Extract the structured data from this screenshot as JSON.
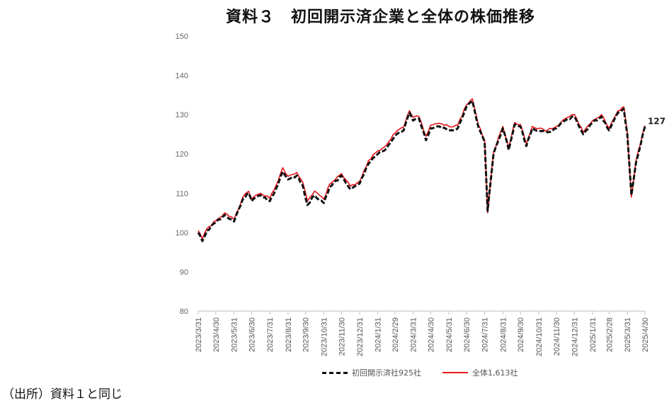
{
  "chart_data": {
    "type": "line",
    "title": "資料３　初回開示済企業と全体の株価推移",
    "ylim": [
      80,
      150
    ],
    "yticks": [
      80,
      90,
      100,
      110,
      120,
      130,
      140,
      150
    ],
    "grid": false,
    "legend_position": "bottom",
    "x": [
      "2023/3/31",
      "2023/4/30",
      "2023/5/31",
      "2023/6/30",
      "2023/7/31",
      "2023/8/31",
      "2023/9/30",
      "2023/10/31",
      "2023/11/30",
      "2023/12/31",
      "2024/1/31",
      "2024/2/29",
      "2024/3/31",
      "2024/4/30",
      "2024/5/31",
      "2024/6/30",
      "2024/7/31",
      "2024/8/31",
      "2024/9/30",
      "2024/10/31",
      "2024/11/30",
      "2024/12/31",
      "2025/1/31",
      "2025/2/28",
      "2025/3/31",
      "2025/4/30"
    ],
    "series": [
      {
        "name": "初回開示済社925社",
        "color": "#111111",
        "style": "dashed",
        "points": [
          [
            "2023/3/31",
            100
          ],
          [
            "2023/4/7",
            97.8
          ],
          [
            "2023/4/15",
            100.5
          ],
          [
            "2023/4/30",
            102.5
          ],
          [
            "2023/5/15",
            104.5
          ],
          [
            "2023/5/31",
            102.8
          ],
          [
            "2023/6/15",
            108.5
          ],
          [
            "2023/6/25",
            110
          ],
          [
            "2023/6/30",
            108
          ],
          [
            "2023/7/15",
            109.5
          ],
          [
            "2023/7/31",
            108
          ],
          [
            "2023/8/10",
            111
          ],
          [
            "2023/8/22",
            115.5
          ],
          [
            "2023/8/31",
            113.5
          ],
          [
            "2023/9/15",
            114.5
          ],
          [
            "2023/9/25",
            112
          ],
          [
            "2023/10/3",
            107
          ],
          [
            "2023/10/15",
            109.5
          ],
          [
            "2023/10/31",
            107.5
          ],
          [
            "2023/11/10",
            111.5
          ],
          [
            "2023/11/30",
            114.5
          ],
          [
            "2023/12/15",
            111
          ],
          [
            "2023/12/31",
            112.5
          ],
          [
            "2024/1/15",
            117.5
          ],
          [
            "2024/1/31",
            120
          ],
          [
            "2024/2/15",
            121.5
          ],
          [
            "2024/2/29",
            124.5
          ],
          [
            "2024/3/15",
            126
          ],
          [
            "2024/3/25",
            130.5
          ],
          [
            "2024/3/31",
            128.5
          ],
          [
            "2024/4/10",
            129
          ],
          [
            "2024/4/22",
            123.5
          ],
          [
            "2024/4/30",
            126.5
          ],
          [
            "2024/5/15",
            127
          ],
          [
            "2024/5/31",
            126
          ],
          [
            "2024/6/15",
            126.5
          ],
          [
            "2024/6/30",
            132
          ],
          [
            "2024/7/10",
            133.5
          ],
          [
            "2024/7/20",
            127
          ],
          [
            "2024/7/31",
            123
          ],
          [
            "2024/8/5",
            105.5
          ],
          [
            "2024/8/15",
            120
          ],
          [
            "2024/8/31",
            126.5
          ],
          [
            "2024/9/10",
            121
          ],
          [
            "2024/9/20",
            127.5
          ],
          [
            "2024/9/30",
            127
          ],
          [
            "2024/10/10",
            122
          ],
          [
            "2024/10/20",
            126.5
          ],
          [
            "2024/10/31",
            126
          ],
          [
            "2024/11/15",
            125.5
          ],
          [
            "2024/11/30",
            126.5
          ],
          [
            "2024/12/15",
            128.5
          ],
          [
            "2024/12/31",
            129.5
          ],
          [
            "2025/1/15",
            125
          ],
          [
            "2025/1/31",
            128
          ],
          [
            "2025/2/15",
            129.5
          ],
          [
            "2025/2/28",
            126
          ],
          [
            "2025/3/15",
            130.5
          ],
          [
            "2025/3/25",
            131.5
          ],
          [
            "2025/3/31",
            125
          ],
          [
            "2025/4/7",
            109.5
          ],
          [
            "2025/4/15",
            118
          ],
          [
            "2025/4/30",
            127
          ]
        ]
      },
      {
        "name": "全体1,613社",
        "color": "#e8141b",
        "style": "solid",
        "points": [
          [
            "2023/3/31",
            100.5
          ],
          [
            "2023/4/7",
            98.3
          ],
          [
            "2023/4/15",
            101
          ],
          [
            "2023/4/30",
            103
          ],
          [
            "2023/5/15",
            105
          ],
          [
            "2023/5/31",
            103.3
          ],
          [
            "2023/6/15",
            109
          ],
          [
            "2023/6/25",
            110.5
          ],
          [
            "2023/6/30",
            108.5
          ],
          [
            "2023/7/15",
            110
          ],
          [
            "2023/7/31",
            108.7
          ],
          [
            "2023/8/10",
            111.8
          ],
          [
            "2023/8/22",
            116.5
          ],
          [
            "2023/8/31",
            114.3
          ],
          [
            "2023/9/15",
            115.3
          ],
          [
            "2023/9/25",
            112.8
          ],
          [
            "2023/10/3",
            108
          ],
          [
            "2023/10/15",
            110.5
          ],
          [
            "2023/10/31",
            108.5
          ],
          [
            "2023/11/10",
            112.3
          ],
          [
            "2023/11/30",
            115
          ],
          [
            "2023/12/15",
            111.8
          ],
          [
            "2023/12/31",
            113
          ],
          [
            "2024/1/15",
            118.3
          ],
          [
            "2024/1/31",
            120.8
          ],
          [
            "2024/2/15",
            122.3
          ],
          [
            "2024/2/29",
            125.3
          ],
          [
            "2024/3/15",
            126.8
          ],
          [
            "2024/3/25",
            131
          ],
          [
            "2024/3/31",
            129.3
          ],
          [
            "2024/4/10",
            129.5
          ],
          [
            "2024/4/22",
            124.5
          ],
          [
            "2024/4/30",
            127.3
          ],
          [
            "2024/5/15",
            127.8
          ],
          [
            "2024/5/31",
            127
          ],
          [
            "2024/6/15",
            127.3
          ],
          [
            "2024/6/30",
            132.5
          ],
          [
            "2024/7/10",
            134
          ],
          [
            "2024/7/20",
            127.5
          ],
          [
            "2024/7/31",
            123.5
          ],
          [
            "2024/8/5",
            105
          ],
          [
            "2024/8/15",
            120.5
          ],
          [
            "2024/8/31",
            127
          ],
          [
            "2024/9/10",
            121.5
          ],
          [
            "2024/9/20",
            128
          ],
          [
            "2024/9/30",
            127.5
          ],
          [
            "2024/10/10",
            122.5
          ],
          [
            "2024/10/20",
            127
          ],
          [
            "2024/10/31",
            126.5
          ],
          [
            "2024/11/15",
            126
          ],
          [
            "2024/11/30",
            127
          ],
          [
            "2024/12/15",
            129
          ],
          [
            "2024/12/31",
            130
          ],
          [
            "2025/1/15",
            125.5
          ],
          [
            "2025/1/31",
            128.5
          ],
          [
            "2025/2/15",
            130
          ],
          [
            "2025/2/28",
            126.5
          ],
          [
            "2025/3/15",
            131
          ],
          [
            "2025/3/25",
            132
          ],
          [
            "2025/3/31",
            125.5
          ],
          [
            "2025/4/7",
            109
          ],
          [
            "2025/4/15",
            118.5
          ],
          [
            "2025/4/30",
            127.2
          ]
        ]
      }
    ],
    "end_label": "127"
  },
  "source_note": "（出所）資料１と同じ"
}
